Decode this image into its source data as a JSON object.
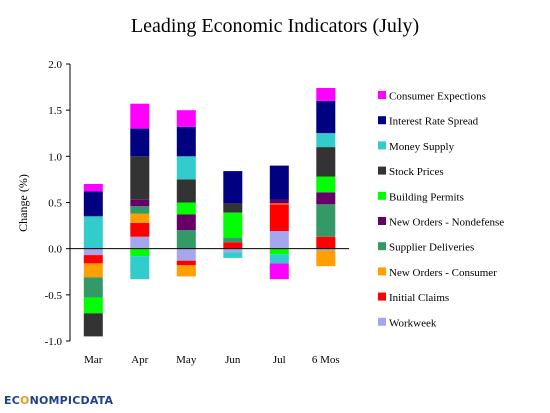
{
  "chart_data": {
    "type": "bar",
    "stacked": true,
    "title": "Leading Economic Indicators (July)",
    "ylabel": "Change (%)",
    "xlabel": "",
    "ylim": [
      -1.0,
      2.0
    ],
    "yticks": [
      "-1.0",
      "-0.5",
      "0.0",
      "0.5",
      "1.0",
      "1.5",
      "2.0"
    ],
    "categories": [
      "Mar",
      "Apr",
      "May",
      "Jun",
      "Jul",
      "6 Mos"
    ],
    "legend_position": "right",
    "series": [
      {
        "name": "Workweek",
        "color": "#a6a6ee",
        "values": [
          -0.07,
          0.13,
          -0.13,
          -0.04,
          0.19,
          -0.02
        ]
      },
      {
        "name": "Initial Claims",
        "color": "#ff0000",
        "values": [
          -0.09,
          0.15,
          -0.05,
          0.07,
          0.29,
          0.13
        ]
      },
      {
        "name": "New Orders - Consumer",
        "color": "#ffa000",
        "values": [
          -0.15,
          0.1,
          -0.12,
          0.0,
          0.01,
          -0.17
        ]
      },
      {
        "name": "Supplier Deliveries",
        "color": "#339966",
        "values": [
          -0.22,
          0.08,
          0.2,
          0.05,
          0.0,
          0.35
        ]
      },
      {
        "name": "New Orders - Nondefense",
        "color": "#660066",
        "values": [
          0.0,
          0.07,
          0.17,
          0.0,
          0.04,
          0.13
        ]
      },
      {
        "name": "Building Permits",
        "color": "#00ff00",
        "values": [
          -0.17,
          -0.08,
          0.13,
          0.27,
          -0.06,
          0.17
        ]
      },
      {
        "name": "Stock Prices",
        "color": "#333333",
        "values": [
          -0.25,
          0.47,
          0.25,
          0.1,
          0.0,
          0.32
        ]
      },
      {
        "name": "Money Supply",
        "color": "#33cccc",
        "values": [
          0.35,
          -0.25,
          0.25,
          -0.06,
          -0.1,
          0.15
        ]
      },
      {
        "name": "Interest Rate Spread",
        "color": "#000080",
        "values": [
          0.27,
          0.3,
          0.32,
          0.35,
          0.37,
          0.35
        ]
      },
      {
        "name": "Consumer Expections",
        "color": "#ff00ff",
        "values": [
          0.08,
          0.27,
          0.18,
          0.0,
          -0.17,
          0.14
        ]
      }
    ]
  },
  "logo": {
    "e": "EC",
    "o": "O",
    "rest": "NOMPICDATA"
  }
}
